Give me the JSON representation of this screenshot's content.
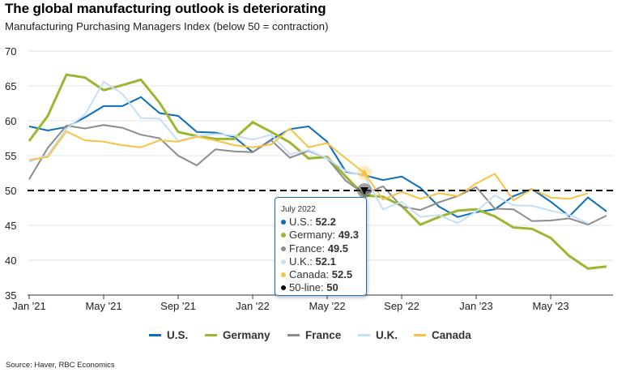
{
  "header": {
    "title": "The global manufacturing outlook is deteriorating",
    "subtitle": "Manufacturing Purchasing Managers Index (below 50 = contraction)"
  },
  "footer": {
    "source": "Source: Haver, RBC Economics"
  },
  "chart_data": {
    "type": "line",
    "title": "The global manufacturing outlook is deteriorating",
    "subtitle": "Manufacturing Purchasing Managers Index (below 50 = contraction)",
    "xlabel": "",
    "ylabel": "",
    "ylim": [
      35,
      70
    ],
    "yticks": [
      35,
      40,
      45,
      50,
      55,
      60,
      65,
      70
    ],
    "grid": true,
    "legend_position": "bottom",
    "x": [
      "2021-01",
      "2021-02",
      "2021-03",
      "2021-04",
      "2021-05",
      "2021-06",
      "2021-07",
      "2021-08",
      "2021-09",
      "2021-10",
      "2021-11",
      "2021-12",
      "2022-01",
      "2022-02",
      "2022-03",
      "2022-04",
      "2022-05",
      "2022-06",
      "2022-07",
      "2022-08",
      "2022-09",
      "2022-10",
      "2022-11",
      "2022-12",
      "2023-01",
      "2023-02",
      "2023-03",
      "2023-04",
      "2023-05",
      "2023-06",
      "2023-07",
      "2023-08"
    ],
    "xticks": [
      {
        "index": 0,
        "label": "Jan '21"
      },
      {
        "index": 4,
        "label": "May '21"
      },
      {
        "index": 8,
        "label": "Sep '21"
      },
      {
        "index": 12,
        "label": "Jan '22"
      },
      {
        "index": 16,
        "label": "May '22"
      },
      {
        "index": 20,
        "label": "Sep '22"
      },
      {
        "index": 24,
        "label": "Jan '23"
      },
      {
        "index": 28,
        "label": "May '23"
      }
    ],
    "series": [
      {
        "name": "U.S.",
        "color": "#0a6ebd",
        "width": 2,
        "values": [
          59.2,
          58.6,
          59.1,
          60.5,
          62.1,
          62.1,
          63.4,
          61.1,
          60.7,
          58.4,
          58.3,
          57.7,
          55.5,
          57.3,
          58.8,
          59.2,
          57.0,
          52.7,
          52.2,
          51.5,
          52.0,
          50.4,
          47.7,
          46.2,
          46.9,
          47.3,
          49.2,
          50.2,
          48.4,
          46.3,
          49.0,
          47.0
        ]
      },
      {
        "name": "Germany",
        "color": "#9bb732",
        "width": 3,
        "values": [
          57.1,
          60.7,
          66.6,
          66.2,
          64.4,
          65.1,
          65.9,
          62.6,
          58.4,
          57.8,
          57.4,
          57.4,
          59.8,
          58.4,
          56.9,
          54.6,
          54.8,
          52.0,
          49.3,
          49.1,
          47.8,
          45.1,
          46.2,
          47.1,
          47.3,
          46.3,
          44.7,
          44.5,
          43.2,
          40.6,
          38.8,
          39.1
        ]
      },
      {
        "name": "France",
        "color": "#8c8c8c",
        "width": 2,
        "values": [
          51.6,
          56.1,
          59.3,
          58.9,
          59.4,
          59.0,
          58.0,
          57.5,
          55.0,
          53.6,
          55.9,
          55.6,
          55.5,
          57.2,
          54.7,
          55.7,
          54.6,
          51.4,
          49.5,
          50.6,
          47.7,
          47.2,
          48.3,
          49.2,
          50.5,
          47.4,
          47.3,
          45.6,
          45.7,
          46.0,
          45.1,
          46.4
        ]
      },
      {
        "name": "U.K.",
        "color": "#c5e0f5",
        "width": 2,
        "values": [
          54.1,
          55.1,
          58.9,
          60.9,
          65.6,
          63.9,
          60.4,
          60.3,
          57.1,
          57.8,
          58.1,
          57.9,
          57.3,
          58.0,
          55.2,
          55.8,
          54.6,
          52.8,
          52.1,
          47.3,
          48.4,
          46.2,
          46.5,
          45.3,
          47.0,
          49.3,
          47.9,
          47.8,
          47.1,
          46.5,
          45.3,
          null
        ]
      },
      {
        "name": "Canada",
        "color": "#f6c343",
        "width": 2,
        "values": [
          54.4,
          54.8,
          58.5,
          57.2,
          57.0,
          56.5,
          56.2,
          57.2,
          57.0,
          57.7,
          57.2,
          56.5,
          56.2,
          56.6,
          58.9,
          56.2,
          56.8,
          54.6,
          52.5,
          48.7,
          49.8,
          48.8,
          49.6,
          49.2,
          51.0,
          52.4,
          48.6,
          50.2,
          49.0,
          48.8,
          49.6,
          null
        ]
      }
    ],
    "reference_line": {
      "name": "50-line",
      "value": 50,
      "color": "#000000",
      "style": "dashed"
    },
    "tooltip": {
      "date": "July 2022",
      "index": 18,
      "rows": [
        {
          "label": "U.S.",
          "value": "52.2",
          "color": "#0a6ebd"
        },
        {
          "label": "Germany",
          "value": "49.3",
          "color": "#9bb732"
        },
        {
          "label": "France",
          "value": "49.5",
          "color": "#8c8c8c"
        },
        {
          "label": "U.K.",
          "value": "52.1",
          "color": "#c5e0f5"
        },
        {
          "label": "Canada",
          "value": "52.5",
          "color": "#f6c343"
        },
        {
          "label": "50-line",
          "value": "50",
          "color": "#000000"
        }
      ]
    }
  }
}
